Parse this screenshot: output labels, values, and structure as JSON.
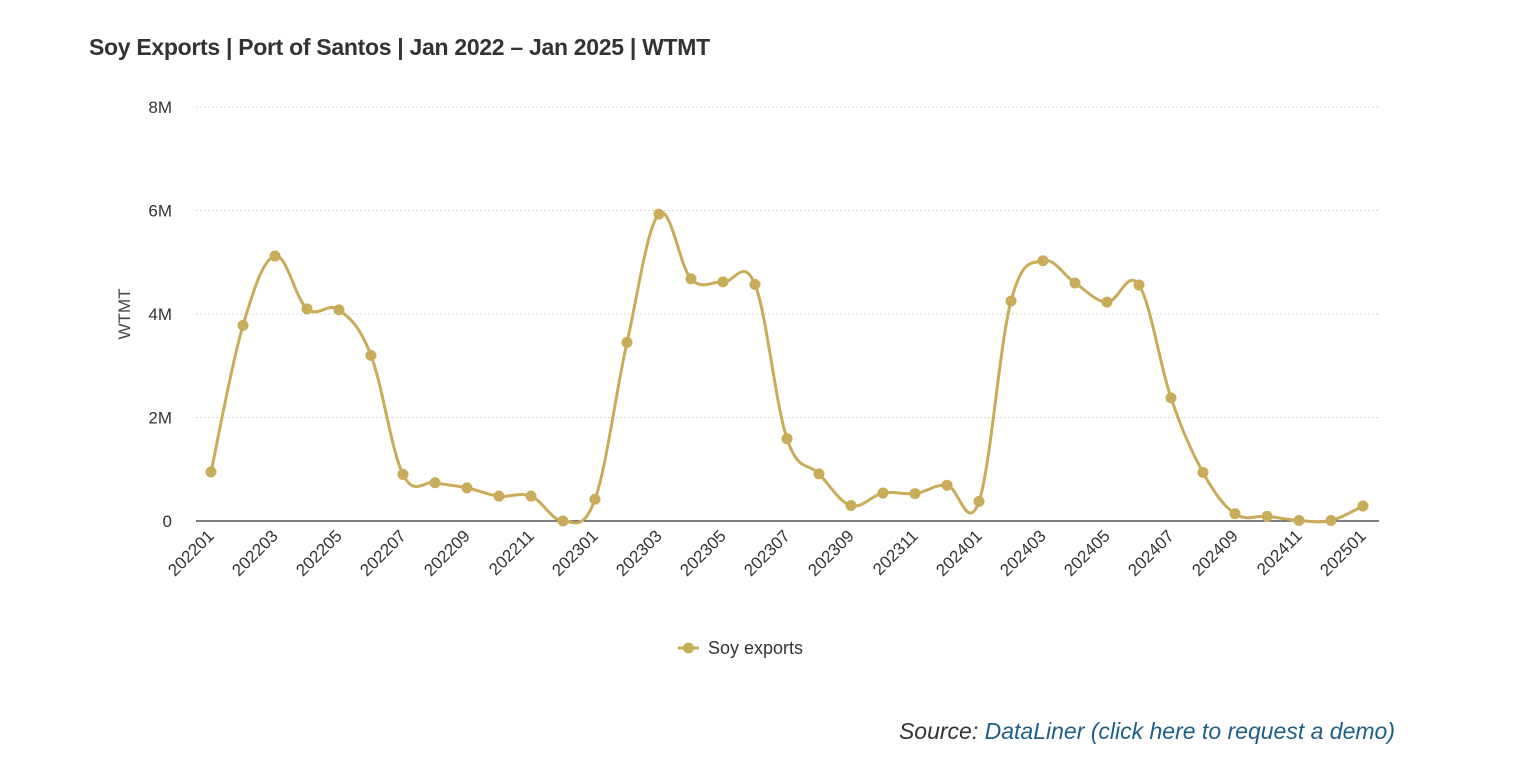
{
  "chart_data": {
    "type": "line",
    "title": "Soy Exports | Port of Santos | Jan 2022 – Jan 2025 | WTMT",
    "xlabel": "",
    "ylabel": "WTMT",
    "ylim": [
      0,
      8000000
    ],
    "yticks": [
      {
        "value": 0,
        "label": "0"
      },
      {
        "value": 2000000,
        "label": "2M"
      },
      {
        "value": 4000000,
        "label": "4M"
      },
      {
        "value": 6000000,
        "label": "6M"
      },
      {
        "value": 8000000,
        "label": "8M"
      }
    ],
    "categories": [
      "202201",
      "202202",
      "202203",
      "202204",
      "202205",
      "202206",
      "202207",
      "202208",
      "202209",
      "202210",
      "202211",
      "202212",
      "202301",
      "202302",
      "202303",
      "202304",
      "202305",
      "202306",
      "202307",
      "202308",
      "202309",
      "202310",
      "202311",
      "202312",
      "202401",
      "202402",
      "202403",
      "202404",
      "202405",
      "202406",
      "202407",
      "202408",
      "202409",
      "202410",
      "202411",
      "202412",
      "202501"
    ],
    "xtick_labels": [
      "202201",
      "202203",
      "202205",
      "202207",
      "202209",
      "202211",
      "202301",
      "202303",
      "202305",
      "202307",
      "202309",
      "202311",
      "202401",
      "202403",
      "202405",
      "202407",
      "202409",
      "202411",
      "202501"
    ],
    "series": [
      {
        "name": "Soy exports",
        "color": "#c9ac5a",
        "values": [
          950000,
          3780000,
          5120000,
          4100000,
          4080000,
          3200000,
          900000,
          740000,
          640000,
          480000,
          480000,
          0,
          420000,
          3450000,
          5930000,
          4680000,
          4620000,
          4570000,
          1590000,
          910000,
          300000,
          540000,
          530000,
          690000,
          380000,
          4250000,
          5030000,
          4600000,
          4230000,
          4560000,
          2380000,
          940000,
          140000,
          90000,
          10000,
          10000,
          290000
        ]
      }
    ],
    "grid": true,
    "legend_position": "bottom-center"
  },
  "source": {
    "prefix": "Source:",
    "link_text": "DataLiner (click here to request a demo)"
  }
}
